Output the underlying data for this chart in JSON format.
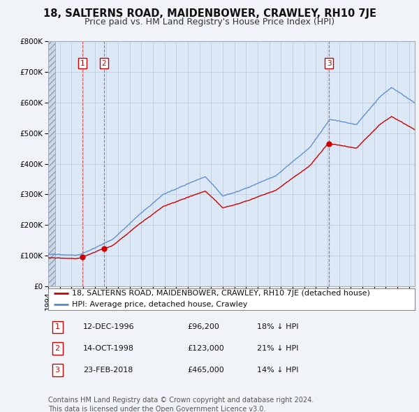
{
  "title": "18, SALTERNS ROAD, MAIDENBOWER, CRAWLEY, RH10 7JE",
  "subtitle": "Price paid vs. HM Land Registry's House Price Index (HPI)",
  "legend_label_red": "18, SALTERNS ROAD, MAIDENBOWER, CRAWLEY, RH10 7JE (detached house)",
  "legend_label_blue": "HPI: Average price, detached house, Crawley",
  "transactions": [
    {
      "num": "1",
      "date": "12-DEC-1996",
      "price_str": "£96,200",
      "year": 1996.92,
      "price": 96200,
      "hpi_pct": "18% ↓ HPI"
    },
    {
      "num": "2",
      "date": "14-OCT-1998",
      "price_str": "£123,000",
      "year": 1998.79,
      "price": 123000,
      "hpi_pct": "21% ↓ HPI"
    },
    {
      "num": "3",
      "date": "23-FEB-2018",
      "price_str": "£465,000",
      "year": 2018.14,
      "price": 465000,
      "hpi_pct": "14% ↓ HPI"
    }
  ],
  "footer": "Contains HM Land Registry data © Crown copyright and database right 2024.\nThis data is licensed under the Open Government Licence v3.0.",
  "ylim": [
    0,
    800000
  ],
  "xlim_start": 1994.0,
  "xlim_end": 2025.5,
  "bg_color": "#f0f4f8",
  "plot_bg_color": "#dce8f5",
  "hatch_region_end": 1994.58,
  "grid_color": "#b8c8d8",
  "red_line_color": "#cc0000",
  "blue_line_color": "#5588cc",
  "dot_color": "#cc0000",
  "vline_color": "#cc0000",
  "box_color": "#cc0000",
  "title_fontsize": 10.5,
  "subtitle_fontsize": 9,
  "tick_fontsize": 7.5,
  "legend_fontsize": 8,
  "footer_fontsize": 7
}
